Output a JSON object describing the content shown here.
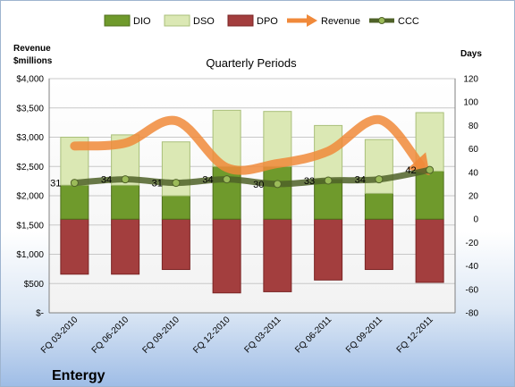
{
  "chart_data": {
    "type": "bar",
    "title": "Quarterly Periods",
    "company": "Entergy",
    "left_axis_title": [
      "Revenue",
      "$millions"
    ],
    "right_axis_title": "Days",
    "categories": [
      "FQ 03-2010",
      "FQ 06-2010",
      "FQ 09-2010",
      "FQ 12-2010",
      "FQ 03-2011",
      "FQ 06-2011",
      "FQ 09-2011",
      "FQ 12-2011"
    ],
    "left_ticks": [
      "$-",
      "$500",
      "$1,000",
      "$1,500",
      "$2,000",
      "$2,500",
      "$3,000",
      "$3,500",
      "$4,000"
    ],
    "right_ticks": [
      "-80",
      "-60",
      "-40",
      "-20",
      "0",
      "20",
      "40",
      "60",
      "80",
      "100",
      "120"
    ],
    "left_ylim": [
      0,
      4000
    ],
    "right_ylim": [
      -80,
      120
    ],
    "legend": [
      "DIO",
      "DSO",
      "DPO",
      "Revenue",
      "CCC"
    ],
    "series": [
      {
        "name": "DIO",
        "values": [
          29,
          29,
          20,
          45,
          45,
          34,
          22,
          41
        ],
        "color": "#6f9a2c"
      },
      {
        "name": "DSO",
        "values": [
          41,
          43,
          46,
          48,
          47,
          46,
          46,
          50
        ],
        "color": "#dbe8b4"
      },
      {
        "name": "DPO",
        "values": [
          -47,
          -47,
          -43,
          -63,
          -62,
          -52,
          -43,
          -54
        ],
        "color": "#a33e3e"
      },
      {
        "name": "Revenue",
        "values": [
          2850,
          2900,
          3280,
          2480,
          2550,
          2760,
          3300,
          2350
        ],
        "color": "#f0893a"
      },
      {
        "name": "CCC",
        "values": [
          31,
          34,
          31,
          34,
          30,
          33,
          34,
          42
        ],
        "color": "#4f6228"
      }
    ],
    "grid": true,
    "legend_position": "top"
  }
}
